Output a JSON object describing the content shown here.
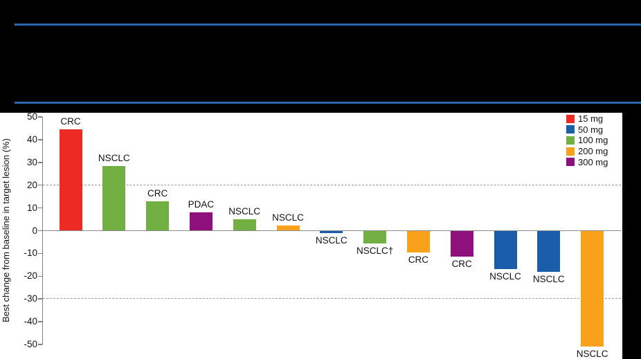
{
  "header": {
    "rule_color": "#2a67b1"
  },
  "chart_data": {
    "type": "bar",
    "title": "",
    "xlabel": "",
    "ylabel": "Best change from baseline in target lesion (%)",
    "ylim": [
      -50,
      50
    ],
    "yticks": [
      50,
      40,
      30,
      20,
      10,
      0,
      -10,
      -20,
      -30,
      -40,
      -50
    ],
    "grid": "dashed reference lines only",
    "reference_lines": [
      20,
      -30
    ],
    "zero_line": 0,
    "legend_position": "top-right",
    "legend": [
      {
        "label": "15 mg",
        "color": "#ee2a24"
      },
      {
        "label": "50 mg",
        "color": "#1a5dab"
      },
      {
        "label": "100 mg",
        "color": "#72b043"
      },
      {
        "label": "200 mg",
        "color": "#f9a11b"
      },
      {
        "label": "300 mg",
        "color": "#8e107c"
      }
    ],
    "bars": [
      {
        "label": "CRC",
        "dose": "15 mg",
        "value": 44.5
      },
      {
        "label": "NSCLC",
        "dose": "100 mg",
        "value": 28.5
      },
      {
        "label": "CRC",
        "dose": "100 mg",
        "value": 13
      },
      {
        "label": "PDAC",
        "dose": "300 mg",
        "value": 8
      },
      {
        "label": "NSCLC",
        "dose": "100 mg",
        "value": 5
      },
      {
        "label": "NSCLC",
        "dose": "200 mg",
        "value": 2.3
      },
      {
        "label": "NSCLC",
        "dose": "50 mg",
        "value": -1
      },
      {
        "label": "NSCLC†",
        "dose": "100 mg",
        "value": -5.5
      },
      {
        "label": "CRC",
        "dose": "200 mg",
        "value": -9.5
      },
      {
        "label": "CRC",
        "dose": "300 mg",
        "value": -11.5
      },
      {
        "label": "NSCLC",
        "dose": "50 mg",
        "value": -17
      },
      {
        "label": "NSCLC",
        "dose": "50 mg",
        "value": -18
      },
      {
        "label": "NSCLC",
        "dose": "200 mg",
        "value": -51
      }
    ]
  }
}
